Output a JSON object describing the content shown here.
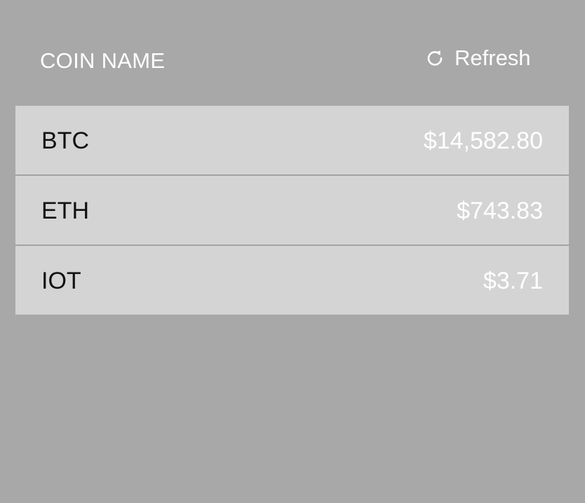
{
  "header": {
    "column_title": "COIN NAME",
    "refresh_label": "Refresh",
    "refresh_icon": "refresh-icon"
  },
  "coins": [
    {
      "symbol": "BTC",
      "price": "$14,582.80"
    },
    {
      "symbol": "ETH",
      "price": "$743.83"
    },
    {
      "symbol": "IOT",
      "price": "$3.71"
    }
  ],
  "colors": {
    "background": "#a8a8a8",
    "row_background": "#d4d4d4",
    "header_text": "#ffffff",
    "symbol_text": "#111111",
    "price_text": "#ffffff"
  }
}
